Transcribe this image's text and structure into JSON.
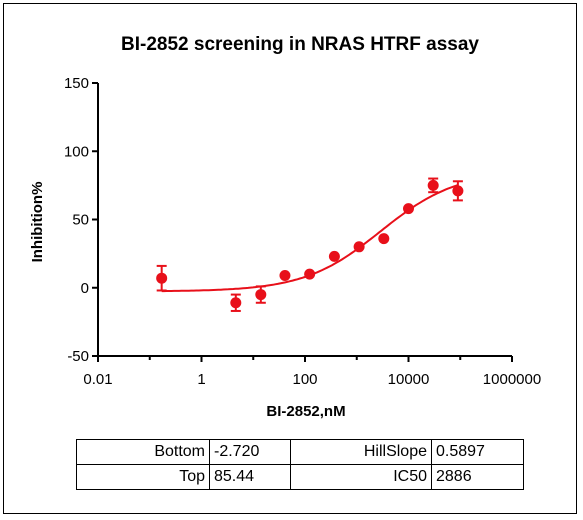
{
  "chart_data": {
    "type": "scatter",
    "title": "BI-2852 screening in NRAS HTRF assay",
    "xlabel": "BI-2852,nM",
    "ylabel": "Inhibition%",
    "xscale": "log",
    "xlim": [
      0.01,
      1000000
    ],
    "ylim": [
      -50,
      150
    ],
    "x_ticks": [
      "0.01",
      "1",
      "100",
      "10000",
      "1000000"
    ],
    "y_ticks": [
      "-50",
      "0",
      "50",
      "100",
      "150"
    ],
    "color": "#e8101a",
    "grid": false,
    "series": [
      {
        "points": [
          {
            "x": 0.17,
            "y": 7,
            "err": 9
          },
          {
            "x": 4.6,
            "y": -11,
            "err": 6
          },
          {
            "x": 14,
            "y": -5,
            "err": 6
          },
          {
            "x": 41,
            "y": 9,
            "err": 0
          },
          {
            "x": 123,
            "y": 10,
            "err": 0
          },
          {
            "x": 370,
            "y": 23,
            "err": 0
          },
          {
            "x": 1111,
            "y": 30,
            "err": 0
          },
          {
            "x": 3333,
            "y": 36,
            "err": 0
          },
          {
            "x": 10000,
            "y": 58,
            "err": 0
          },
          {
            "x": 30000,
            "y": 75,
            "err": 5
          },
          {
            "x": 90000,
            "y": 71,
            "err": 7
          }
        ]
      }
    ],
    "fit": {
      "model": "sigmoidal dose-response",
      "bottom": -2.72,
      "top": 85.44,
      "ic50": 2886,
      "hillslope": 0.5897,
      "x_range": [
        0.17,
        90000
      ]
    }
  },
  "fit_table": {
    "rows": [
      [
        "Bottom",
        "-2.720",
        "HillSlope",
        "0.5897"
      ],
      [
        "Top",
        "85.44",
        "IC50",
        "2886"
      ]
    ]
  }
}
